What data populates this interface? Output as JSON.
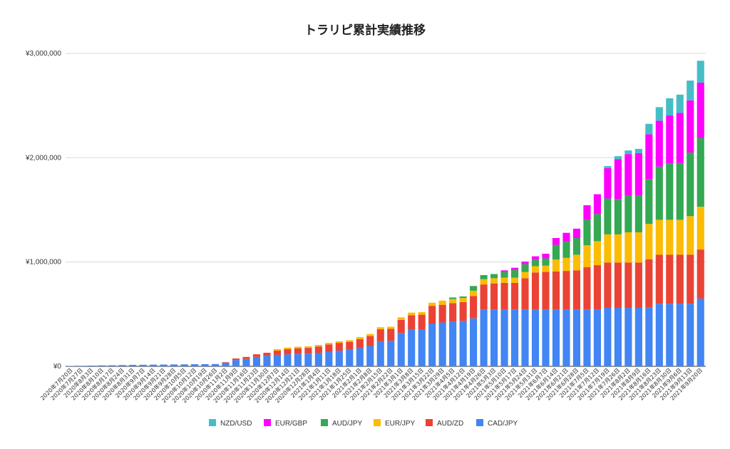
{
  "chart_data": {
    "type": "bar",
    "stacked": true,
    "title": "トラリピ累計実績推移",
    "xlabel": "",
    "ylabel": "",
    "ylim": [
      0,
      3000000
    ],
    "yticks": [
      0,
      1000000,
      2000000,
      3000000
    ],
    "ytick_labels": [
      "¥0",
      "¥1,000,000",
      "¥2,000,000",
      "¥3,000,000"
    ],
    "grid": true,
    "legend_position": "bottom",
    "colors": {
      "CAD/JPY": "#4285f4",
      "AUD/ZD": "#ea4335",
      "EUR/JPY": "#fbbc04",
      "AUD/JPY": "#34a853",
      "EUR/GBP": "#ff00ff",
      "NZD/USD": "#46bdc6"
    },
    "legend": [
      "NZD/USD",
      "EUR/GBP",
      "AUD/JPY",
      "EUR/JPY",
      "AUD/ZD",
      "CAD/JPY"
    ],
    "categories": [
      "2020年7月20日",
      "2020年7月27日",
      "2020年8月3日",
      "2020年8月10日",
      "2020年8月17日",
      "2020年8月24日",
      "2020年8月31日",
      "2020年9月7日",
      "2020年9月14日",
      "2020年9月21日",
      "2020年9月28日",
      "2020年10月5日",
      "2020年10月12日",
      "2020年10月19日",
      "2020年10月26日",
      "2020年11月2日",
      "2020年11月9日",
      "2020年11月16日",
      "2020年11月23日",
      "2020年11月30日",
      "2020年12月7日",
      "2020年12月14日",
      "2020年12月21日",
      "2020年12月28日",
      "2021年1月4日",
      "2021年1月11日",
      "2021年1月18日",
      "2021年1月25日",
      "2021年2月1日",
      "2021年2月8日",
      "2021年2月15日",
      "2021年2月22日",
      "2021年3月1日",
      "2021年3月8日",
      "2021年3月15日",
      "2021年3月22日",
      "2021年3月29日",
      "2021年4月5日",
      "2021年4月12日",
      "2021年4月19日",
      "2021年4月26日",
      "2021年5月3日",
      "2021年5月10日",
      "2021年5月17日",
      "2021年5月24日",
      "2021年5月31日",
      "2021年6月7日",
      "2021年6月14日",
      "2021年6月21日",
      "2021年6月28日",
      "2021年7月5日",
      "2021年7月12日",
      "2021年7月19日",
      "2021年7月26日",
      "2021年8月2日",
      "2021年8月9日",
      "2021年8月16日",
      "2021年8月23日",
      "2021年8月30日",
      "2021年9月6日",
      "2021年9月13日",
      "2021年9月20日"
    ],
    "series": [
      {
        "name": "CAD/JPY",
        "values": [
          3000,
          5000,
          7000,
          9000,
          10000,
          12000,
          14000,
          15000,
          16000,
          17000,
          18000,
          19000,
          20000,
          21000,
          22000,
          35000,
          60000,
          70000,
          90000,
          100000,
          110000,
          115000,
          118000,
          122000,
          130000,
          140000,
          150000,
          160000,
          175000,
          195000,
          240000,
          245000,
          320000,
          350000,
          355000,
          410000,
          420000,
          430000,
          435000,
          460000,
          545000,
          545000,
          545000,
          545000,
          545000,
          545000,
          545000,
          545000,
          545000,
          545000,
          545000,
          545000,
          560000,
          560000,
          560000,
          560000,
          565000,
          600000,
          600000,
          600000,
          600000,
          650000
        ]
      },
      {
        "name": "AUD/ZD",
        "values": [
          0,
          0,
          0,
          0,
          0,
          0,
          0,
          0,
          0,
          0,
          0,
          0,
          0,
          0,
          0,
          5000,
          15000,
          20000,
          25000,
          30000,
          40000,
          50000,
          55000,
          55000,
          60000,
          70000,
          75000,
          75000,
          85000,
          95000,
          115000,
          115000,
          125000,
          140000,
          140000,
          170000,
          170000,
          175000,
          180000,
          215000,
          240000,
          250000,
          255000,
          255000,
          300000,
          355000,
          360000,
          365000,
          370000,
          375000,
          405000,
          425000,
          435000,
          435000,
          435000,
          435000,
          460000,
          470000,
          470000,
          470000,
          470000,
          470000
        ]
      },
      {
        "name": "EUR/JPY",
        "values": [
          0,
          0,
          0,
          0,
          0,
          0,
          0,
          0,
          0,
          0,
          0,
          0,
          0,
          0,
          0,
          0,
          0,
          0,
          0,
          0,
          15000,
          15000,
          15000,
          15000,
          15000,
          15000,
          15000,
          15000,
          20000,
          20000,
          20000,
          20000,
          25000,
          25000,
          25000,
          30000,
          40000,
          40000,
          40000,
          50000,
          50000,
          50000,
          50000,
          50000,
          60000,
          60000,
          60000,
          115000,
          125000,
          150000,
          210000,
          230000,
          270000,
          270000,
          290000,
          290000,
          340000,
          335000,
          335000,
          335000,
          370000,
          410000
        ]
      },
      {
        "name": "AUD/JPY",
        "values": [
          0,
          0,
          0,
          0,
          0,
          0,
          0,
          0,
          0,
          0,
          0,
          0,
          0,
          0,
          0,
          0,
          0,
          0,
          0,
          0,
          0,
          0,
          0,
          0,
          0,
          0,
          0,
          0,
          0,
          0,
          0,
          0,
          0,
          0,
          0,
          0,
          0,
          15000,
          15000,
          45000,
          40000,
          40000,
          55000,
          75000,
          75000,
          60000,
          70000,
          140000,
          155000,
          160000,
          245000,
          260000,
          345000,
          340000,
          350000,
          350000,
          430000,
          510000,
          540000,
          545000,
          610000,
          660000
        ]
      },
      {
        "name": "EUR/GBP",
        "values": [
          0,
          0,
          0,
          0,
          0,
          0,
          0,
          0,
          0,
          0,
          0,
          0,
          0,
          0,
          0,
          0,
          0,
          0,
          0,
          0,
          0,
          0,
          0,
          0,
          0,
          0,
          0,
          0,
          0,
          0,
          0,
          0,
          0,
          0,
          0,
          0,
          0,
          0,
          0,
          0,
          0,
          0,
          15000,
          20000,
          25000,
          35000,
          45000,
          65000,
          85000,
          90000,
          140000,
          190000,
          290000,
          380000,
          400000,
          410000,
          430000,
          440000,
          460000,
          480000,
          500000,
          530000
        ]
      },
      {
        "name": "NZD/USD",
        "values": [
          0,
          0,
          0,
          0,
          0,
          0,
          0,
          0,
          0,
          0,
          0,
          0,
          0,
          0,
          0,
          0,
          0,
          0,
          0,
          0,
          0,
          0,
          0,
          0,
          0,
          0,
          0,
          0,
          0,
          0,
          0,
          0,
          0,
          0,
          0,
          0,
          0,
          0,
          0,
          0,
          0,
          0,
          0,
          0,
          0,
          0,
          0,
          0,
          0,
          0,
          0,
          0,
          20000,
          30000,
          35000,
          40000,
          100000,
          130000,
          165000,
          175000,
          190000,
          210000
        ]
      }
    ]
  }
}
